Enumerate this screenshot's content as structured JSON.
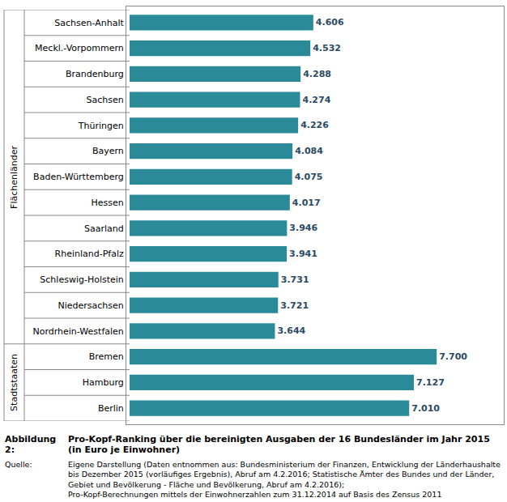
{
  "chart_data": {
    "type": "bar",
    "orientation": "horizontal",
    "data_labels": true,
    "tick_labels": "y",
    "grid": false,
    "color": "#2a8a98",
    "title": {
      "label": "Abbildung 2:",
      "lines": [
        "Pro-Kopf-Ranking über die bereinigten Ausgaben der 16 Bundesländer im Jahr 2015",
        "(in Euro je Einwohner)"
      ]
    },
    "source": {
      "label": "Quelle:",
      "lines": [
        "Eigene Darstellung (Daten entnommen aus: Bundesministerium der Finanzen, Entwicklung der Länderhaushalte bis Dezember 2015 (vorläufiges Ergebnis), Abruf am 4.2.2016;  Statistische Ämter des Bundes und der Länder, Gebiet und Bevölkerung - Fläche und Bevölkerung, Abruf am 4.2.2016);",
        "Pro-Kopf-Berechnungen mittels der Einwohnerzahlen zum 31.12.2014 auf Basis des Zensus 2011"
      ]
    },
    "categories": [
      "Sachsen-Anhalt",
      "Meckl.-Vorpommern",
      "Brandenburg",
      "Sachsen",
      "Thüringen",
      "Bayern",
      "Baden-Württemberg",
      "Hessen",
      "Saarland",
      "Rheinland-Pfalz",
      "Schleswig-Holstein",
      "Niedersachsen",
      "Nordrhein-Westfalen",
      "Bremen",
      "Hamburg",
      "Berlin"
    ],
    "groups": [
      "Flächenländer",
      "Flächenländer",
      "Flächenländer",
      "Flächenländer",
      "Flächenländer",
      "Flächenländer",
      "Flächenländer",
      "Flächenländer",
      "Flächenländer",
      "Flächenländer",
      "Flächenländer",
      "Flächenländer",
      "Flächenländer",
      "Stadtstaaten",
      "Stadtstaaten",
      "Stadtstaaten"
    ],
    "values": [
      4606,
      4532,
      4288,
      4274,
      4226,
      4084,
      4075,
      4017,
      3946,
      3941,
      3731,
      3721,
      3644,
      7700,
      7127,
      7010
    ],
    "value_labels": [
      "4.606",
      "4.532",
      "4.288",
      "4.274",
      "4.226",
      "4.084",
      "4.075",
      "4.017",
      "3.946",
      "3.941",
      "3.731",
      "3.721",
      "3.644",
      "7.700",
      "7.127",
      "7.010"
    ],
    "xlim": [
      0,
      9300
    ]
  }
}
